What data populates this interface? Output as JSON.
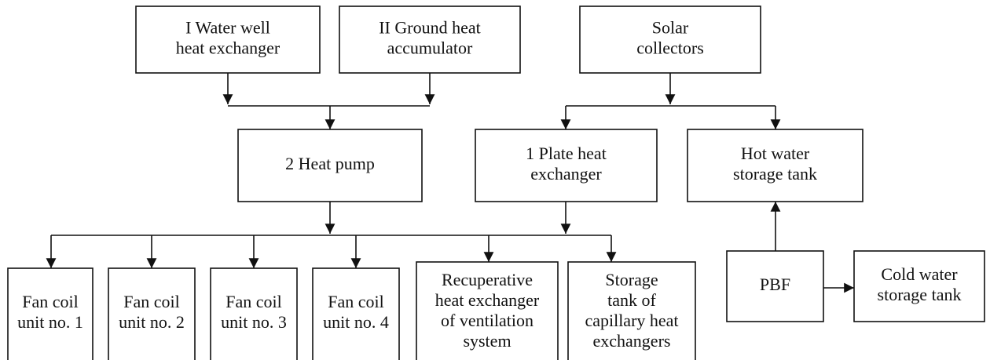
{
  "nodes": [
    {
      "lines": [
        "I Water well",
        "heat exchanger"
      ]
    },
    {
      "lines": [
        "II Ground heat",
        "accumulator"
      ]
    },
    {
      "lines": [
        "Solar",
        "collectors"
      ]
    },
    {
      "lines": [
        "2 Heat pump"
      ]
    },
    {
      "lines": [
        "1 Plate heat",
        "exchanger"
      ]
    },
    {
      "lines": [
        "Hot water",
        "storage tank"
      ]
    },
    {
      "lines": [
        "Fan coil",
        "unit no. 1"
      ]
    },
    {
      "lines": [
        "Fan coil",
        "unit no. 2"
      ]
    },
    {
      "lines": [
        "Fan coil",
        "unit no. 3"
      ]
    },
    {
      "lines": [
        "Fan coil",
        "unit no. 4"
      ]
    },
    {
      "lines": [
        "Recuperative",
        "heat exchanger",
        "of ventilation",
        "system"
      ]
    },
    {
      "lines": [
        "Storage",
        "tank of",
        "capillary heat",
        "exchangers"
      ]
    },
    {
      "lines": [
        "PBF"
      ]
    },
    {
      "lines": [
        "Cold water",
        "storage tank"
      ]
    }
  ]
}
